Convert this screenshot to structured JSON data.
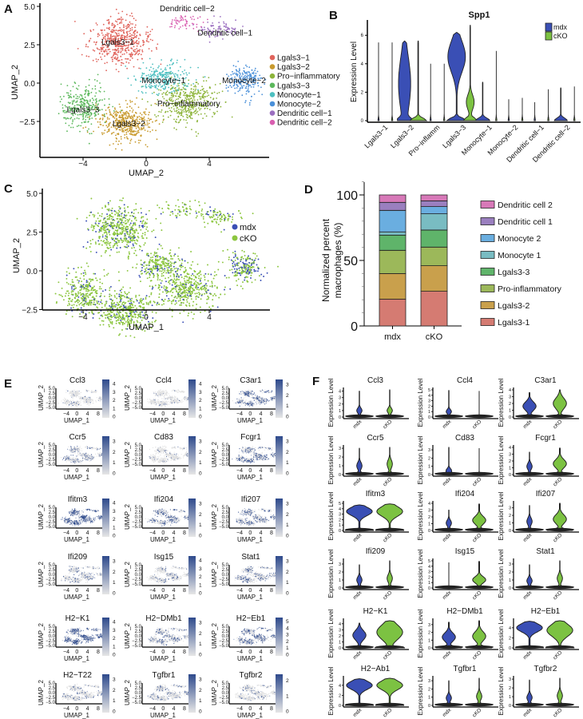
{
  "panel_letters": {
    "A": "A",
    "B": "B",
    "C": "C",
    "D": "D",
    "E": "E",
    "F": "F"
  },
  "chart_data": [
    {
      "type": "scatter",
      "xlabel": "UMAP_2",
      "ylabel": "UMAP_2",
      "xticks": [
        "−4",
        "0",
        "4"
      ],
      "yticks": [
        "5.0",
        "2.5",
        "0.0",
        "−2.5"
      ],
      "legend_position": "right",
      "clusters": [
        {
          "name": "Lgals3−1",
          "label": "Lgals3−1",
          "color": "#e0645c"
        },
        {
          "name": "Lgals3−2",
          "label": "Lgals3−2",
          "color": "#c89a2e"
        },
        {
          "name": "Pro−inflammatory",
          "label": "Pro−inflammatory",
          "color": "#8db43a"
        },
        {
          "name": "Lgals3−3",
          "label": "Lgals3−3",
          "color": "#5cb85c"
        },
        {
          "name": "Monocyte−1",
          "label": "Monocyte−1",
          "color": "#4dbfc0"
        },
        {
          "name": "Monocyte−2",
          "label": "Monocyte−2",
          "color": "#4a90d9"
        },
        {
          "name": "Dendritic cell−1",
          "label": "Dendritic cell−1",
          "color": "#9b6fc0"
        },
        {
          "name": "Dendritic cell−2",
          "label": "Dendritic cell−2",
          "color": "#d95fb0"
        }
      ]
    },
    {
      "type": "violin",
      "title": "Spp1",
      "ylabel": "Expression Level",
      "yticks": [
        0,
        2,
        4,
        6
      ],
      "ylim": [
        0,
        7
      ],
      "legend_position": "top-right",
      "categories": [
        "Lgals3−1",
        "Lgals3−2",
        "Pro−inflamm",
        "Lgals3−3",
        "Monocyte−1",
        "Monocyte−2",
        "Dendritic cell−1",
        "Dendritic cell−2"
      ],
      "series": [
        {
          "name": "mdx",
          "color": "#3a4fb5",
          "max": [
            5.5,
            5.6,
            4.0,
            6.2,
            2.7,
            1.5,
            1.3,
            2.3
          ],
          "median": [
            0,
            0.3,
            0,
            3.0,
            0,
            0,
            0,
            0
          ]
        },
        {
          "name": "cKO",
          "color": "#7cc242",
          "max": [
            5.5,
            5.6,
            4.0,
            6.7,
            4.9,
            1.6,
            2.2,
            2.4
          ],
          "median": [
            0,
            0,
            0,
            0,
            0,
            0,
            0,
            0
          ]
        }
      ]
    },
    {
      "type": "scatter",
      "xlabel": "UMAP_1",
      "ylabel": "UMAP_2",
      "xticks": [
        "−4",
        "0",
        "4"
      ],
      "yticks": [
        "5.0",
        "2.5",
        "0.0",
        "−2.5"
      ],
      "legend_position": "right",
      "series": [
        {
          "name": "mdx",
          "color": "#3a4fb5"
        },
        {
          "name": "cKO",
          "color": "#8cc63f"
        }
      ]
    },
    {
      "type": "bar",
      "stacked": true,
      "ylabel_lines": [
        "Normalized percent",
        "macrophages (%)"
      ],
      "yticks": [
        0,
        50,
        100
      ],
      "ylim": [
        0,
        110
      ],
      "categories": [
        "mdx",
        "cKO"
      ],
      "legend_position": "right",
      "series": [
        {
          "name": "Lgals3-1",
          "color": "#d57b72",
          "values": [
            20.4,
            26.5
          ]
        },
        {
          "name": "Lgals3-2",
          "color": "#c9a04c",
          "values": [
            19.6,
            19.5
          ]
        },
        {
          "name": "Pro-inflammatory",
          "color": "#9cb85a",
          "values": [
            17.7,
            14.2
          ]
        },
        {
          "name": "Lgals3-3",
          "color": "#5fb46a",
          "values": [
            11.6,
            13.0
          ]
        },
        {
          "name": "Monocyte 1",
          "color": "#79bcc2",
          "values": [
            2.5,
            12.4
          ]
        },
        {
          "name": "Monocyte 2",
          "color": "#6aaee0",
          "values": [
            16.4,
            5.5
          ]
        },
        {
          "name": "Dendritic cell 1",
          "color": "#9a7fbf",
          "values": [
            6.1,
            4.4
          ]
        },
        {
          "name": "Dendritic cell 2",
          "color": "#d779b8",
          "values": [
            5.7,
            4.5
          ]
        }
      ]
    },
    {
      "type": "scatter",
      "subtype": "feature-plot-grid",
      "xlabel": "UMAP_1",
      "ylabel": "UMAP_2",
      "xticks": [
        "−4",
        "0",
        "4",
        "8"
      ],
      "yticks": [
        "5.0",
        "2.5",
        "0.0",
        "−2.5",
        "−5.0"
      ],
      "colorscale": [
        "#e6e6e6",
        "#2e4a8c"
      ],
      "genes": [
        {
          "name": "Ccl3",
          "scale_ticks": [
            0,
            1,
            2,
            3,
            4
          ]
        },
        {
          "name": "Ccl4",
          "scale_ticks": [
            0,
            1,
            2,
            3,
            4
          ]
        },
        {
          "name": "C3ar1",
          "scale_ticks": [
            0,
            1,
            2,
            3
          ]
        },
        {
          "name": "Ccr5",
          "scale_ticks": [
            0,
            1,
            2,
            3
          ]
        },
        {
          "name": "Cd83",
          "scale_ticks": [
            0,
            1,
            2,
            3
          ]
        },
        {
          "name": "Fcgr1",
          "scale_ticks": [
            0,
            1,
            2,
            3
          ]
        },
        {
          "name": "Ifitm3",
          "scale_ticks": [
            0,
            1,
            2,
            3,
            4
          ]
        },
        {
          "name": "Ifi204",
          "scale_ticks": [
            0,
            1,
            2,
            3
          ]
        },
        {
          "name": "Ifi207",
          "scale_ticks": [
            0,
            1,
            2,
            3
          ]
        },
        {
          "name": "Ifi209",
          "scale_ticks": [
            0,
            1,
            2,
            3
          ]
        },
        {
          "name": "Isg15",
          "scale_ticks": [
            0,
            1,
            2,
            3,
            4
          ]
        },
        {
          "name": "Stat1",
          "scale_ticks": [
            0,
            1,
            2,
            3
          ]
        },
        {
          "name": "H2−K1",
          "scale_ticks": [
            0,
            1,
            2,
            3,
            4
          ]
        },
        {
          "name": "H2−DMb1",
          "scale_ticks": [
            0,
            1,
            2,
            3
          ]
        },
        {
          "name": "H2−Eb1",
          "scale_ticks": [
            0,
            1,
            2,
            3,
            4,
            5
          ]
        },
        {
          "name": "H2−T22",
          "scale_ticks": [
            0,
            1,
            2,
            3
          ]
        },
        {
          "name": "Tgfbr1",
          "scale_ticks": [
            0,
            1,
            2,
            3
          ]
        },
        {
          "name": "Tgfbr2",
          "scale_ticks": [
            0,
            1,
            2
          ]
        }
      ]
    },
    {
      "type": "violin",
      "ylabel": "Expression Level",
      "categories": [
        "mdx",
        "cKO"
      ],
      "colors": {
        "mdx": "#3a4fb5",
        "cKO": "#7cc242"
      },
      "genes": [
        {
          "name": "Ccl3",
          "yticks": [
            0,
            1,
            2,
            3,
            4
          ],
          "mdx": {
            "max": 4.0,
            "mode": 1.0
          },
          "cKO": {
            "max": 4.2,
            "mode": 1.0
          }
        },
        {
          "name": "Ccl4",
          "yticks": [
            0,
            1,
            2,
            3,
            4,
            5
          ],
          "mdx": {
            "max": 4.9,
            "mode": 1.0
          },
          "cKO": {
            "max": 4.8,
            "mode": 0
          }
        },
        {
          "name": "C3ar1",
          "yticks": [
            0,
            1,
            2,
            3,
            4
          ],
          "mdx": {
            "max": 3.6,
            "mode": 1.6
          },
          "cKO": {
            "max": 4.0,
            "mode": 2.0
          }
        },
        {
          "name": "Ccr5",
          "yticks": [
            0,
            1,
            2,
            3
          ],
          "mdx": {
            "max": 3.0,
            "mode": 1.0
          },
          "cKO": {
            "max": 3.1,
            "mode": 1.2
          }
        },
        {
          "name": "Cd83",
          "yticks": [
            0,
            1,
            2,
            3
          ],
          "mdx": {
            "max": 3.3,
            "mode": 0.5
          },
          "cKO": {
            "max": 3.2,
            "mode": 0
          }
        },
        {
          "name": "Fcgr1",
          "yticks": [
            0,
            1,
            2,
            3,
            4
          ],
          "mdx": {
            "max": 3.3,
            "mode": 1.2
          },
          "cKO": {
            "max": 3.9,
            "mode": 1.6
          }
        },
        {
          "name": "Ifitm3",
          "yticks": [
            0,
            1,
            2,
            3,
            4,
            5
          ],
          "mdx": {
            "max": 4.7,
            "mode": 3.5
          },
          "cKO": {
            "max": 4.9,
            "mode": 3.5
          }
        },
        {
          "name": "Ifi204",
          "yticks": [
            0,
            1,
            2,
            3,
            4
          ],
          "mdx": {
            "max": 3.0,
            "mode": 1.1
          },
          "cKO": {
            "max": 3.9,
            "mode": 1.5
          }
        },
        {
          "name": "Ifi207",
          "yticks": [
            0,
            1,
            2,
            3
          ],
          "mdx": {
            "max": 3.3,
            "mode": 1.2
          },
          "cKO": {
            "max": 3.6,
            "mode": 1.5
          }
        },
        {
          "name": "Ifi209",
          "yticks": [
            0,
            1,
            2,
            3
          ],
          "mdx": {
            "max": 2.9,
            "mode": 1.0
          },
          "cKO": {
            "max": 3.4,
            "mode": 1.2
          }
        },
        {
          "name": "Isg15",
          "yticks": [
            0,
            1,
            2,
            3,
            4,
            5
          ],
          "mdx": {
            "max": 4.7,
            "mode": 0
          },
          "cKO": {
            "max": 4.9,
            "mode": 1.5
          }
        },
        {
          "name": "Stat1",
          "yticks": [
            0,
            1,
            2,
            3
          ],
          "mdx": {
            "max": 2.9,
            "mode": 0.9
          },
          "cKO": {
            "max": 3.4,
            "mode": 1.2
          }
        },
        {
          "name": "H2−K1",
          "yticks": [
            0,
            1,
            2,
            3,
            4
          ],
          "mdx": {
            "max": 4.1,
            "mode": 2.1
          },
          "cKO": {
            "max": 4.5,
            "mode": 2.6
          }
        },
        {
          "name": "H2−DMb1",
          "yticks": [
            0,
            1,
            2,
            3
          ],
          "mdx": {
            "max": 3.3,
            "mode": 1.4
          },
          "cKO": {
            "max": 3.5,
            "mode": 1.5
          }
        },
        {
          "name": "H2−Eb1",
          "yticks": [
            0,
            2,
            4
          ],
          "mdx": {
            "max": 5.3,
            "mode": 4.0
          },
          "cKO": {
            "max": 5.4,
            "mode": 3.5
          }
        },
        {
          "name": "H2−Ab1",
          "yticks": [
            0,
            2,
            4
          ],
          "mdx": {
            "max": 5.3,
            "mode": 4.0
          },
          "cKO": {
            "max": 5.4,
            "mode": 4.0
          }
        },
        {
          "name": "Tgfbr1",
          "yticks": [
            0,
            1,
            2,
            3
          ],
          "mdx": {
            "max": 3.0,
            "mode": 0.9
          },
          "cKO": {
            "max": 3.3,
            "mode": 1.1
          }
        },
        {
          "name": "Tgfbr2",
          "yticks": [
            0,
            1,
            2,
            3
          ],
          "mdx": {
            "max": 2.9,
            "mode": 0.9
          },
          "cKO": {
            "max": 3.1,
            "mode": 1.1
          }
        }
      ]
    }
  ]
}
